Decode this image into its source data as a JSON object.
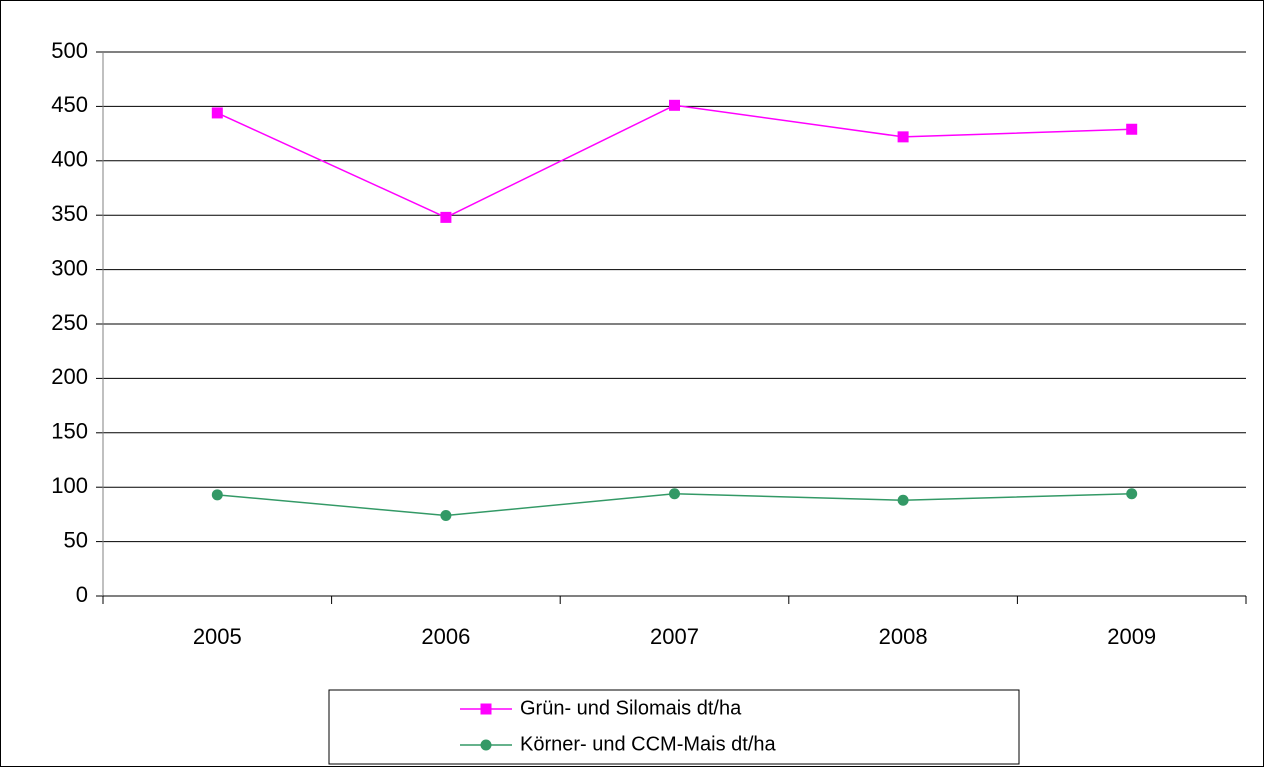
{
  "chart_data": {
    "type": "line",
    "categories": [
      "2005",
      "2006",
      "2007",
      "2008",
      "2009"
    ],
    "series": [
      {
        "name": "Grün- und Silomais dt/ha",
        "color": "#ff00ff",
        "marker": "square",
        "values": [
          444,
          348,
          451,
          422,
          429
        ]
      },
      {
        "name": "Körner- und CCM-Mais dt/ha",
        "color": "#339966",
        "marker": "circle",
        "values": [
          93,
          74,
          94,
          88,
          94
        ]
      }
    ],
    "ylim": [
      0,
      500
    ],
    "yticks": [
      0,
      50,
      100,
      150,
      200,
      250,
      300,
      350,
      400,
      450,
      500
    ],
    "grid": true,
    "legend": "bottom"
  }
}
